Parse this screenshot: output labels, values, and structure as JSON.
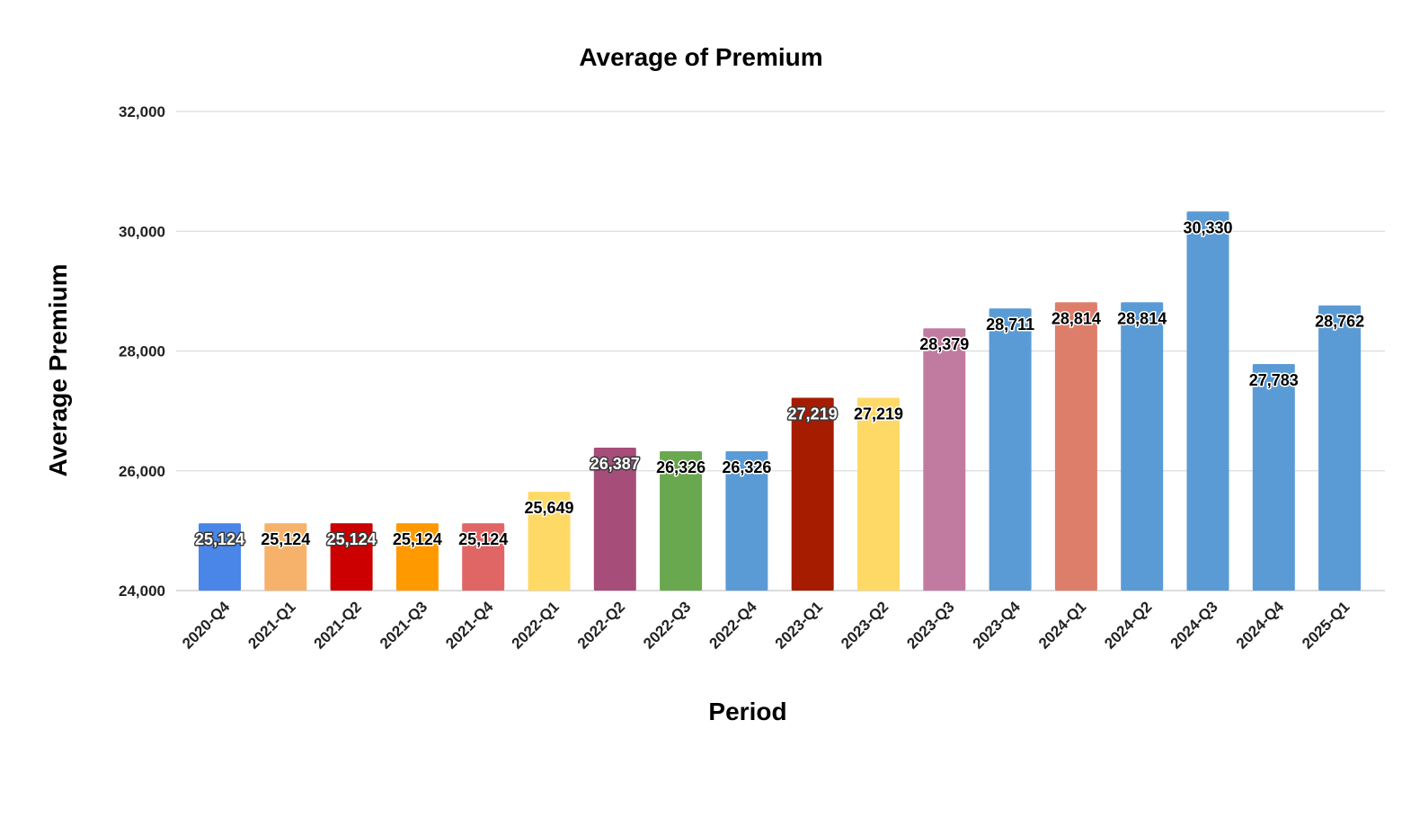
{
  "chart_data": {
    "type": "bar",
    "title": "Average of Premium",
    "xlabel": "Period",
    "ylabel": "Average Premium",
    "ylim": [
      24000,
      32000
    ],
    "yticks": [
      24000,
      26000,
      28000,
      30000,
      32000
    ],
    "ytick_labels": [
      "24,000",
      "26,000",
      "28,000",
      "30,000",
      "32,000"
    ],
    "grid": true,
    "legend": "none",
    "categories": [
      "2020-Q4",
      "2021-Q1",
      "2021-Q2",
      "2021-Q3",
      "2021-Q4",
      "2022-Q1",
      "2022-Q2",
      "2022-Q3",
      "2022-Q4",
      "2023-Q1",
      "2023-Q2",
      "2023-Q3",
      "2023-Q4",
      "2024-Q1",
      "2024-Q2",
      "2024-Q3",
      "2024-Q4",
      "2025-Q1"
    ],
    "values": [
      25124,
      25124,
      25124,
      25124,
      25124,
      25649,
      26387,
      26326,
      26326,
      27219,
      27219,
      28379,
      28711,
      28814,
      28814,
      30330,
      27783,
      28762
    ],
    "value_labels": [
      "25,124",
      "25,124",
      "25,124",
      "25,124",
      "25,124",
      "25,649",
      "26,387",
      "26,326",
      "26,326",
      "27,219",
      "27,219",
      "28,379",
      "28,711",
      "28,814",
      "28,814",
      "30,330",
      "27,783",
      "28,762"
    ],
    "bar_colors": [
      "#4a86e8",
      "#f6b26b",
      "#cc0000",
      "#ff9900",
      "#e06666",
      "#ffd966",
      "#a64d79",
      "#6aa84f",
      "#5b9bd5",
      "#a61c00",
      "#ffd966",
      "#c27ba0",
      "#5b9bd5",
      "#dd7e6b",
      "#5b9bd5",
      "#5b9bd5",
      "#5b9bd5",
      "#5b9bd5"
    ],
    "label_text_colors": [
      "#ffffff",
      "#000000",
      "#ffffff",
      "#000000",
      "#000000",
      "#000000",
      "#ffffff",
      "#000000",
      "#000000",
      "#ffffff",
      "#000000",
      "#000000",
      "#000000",
      "#000000",
      "#000000",
      "#000000",
      "#000000",
      "#000000"
    ]
  }
}
